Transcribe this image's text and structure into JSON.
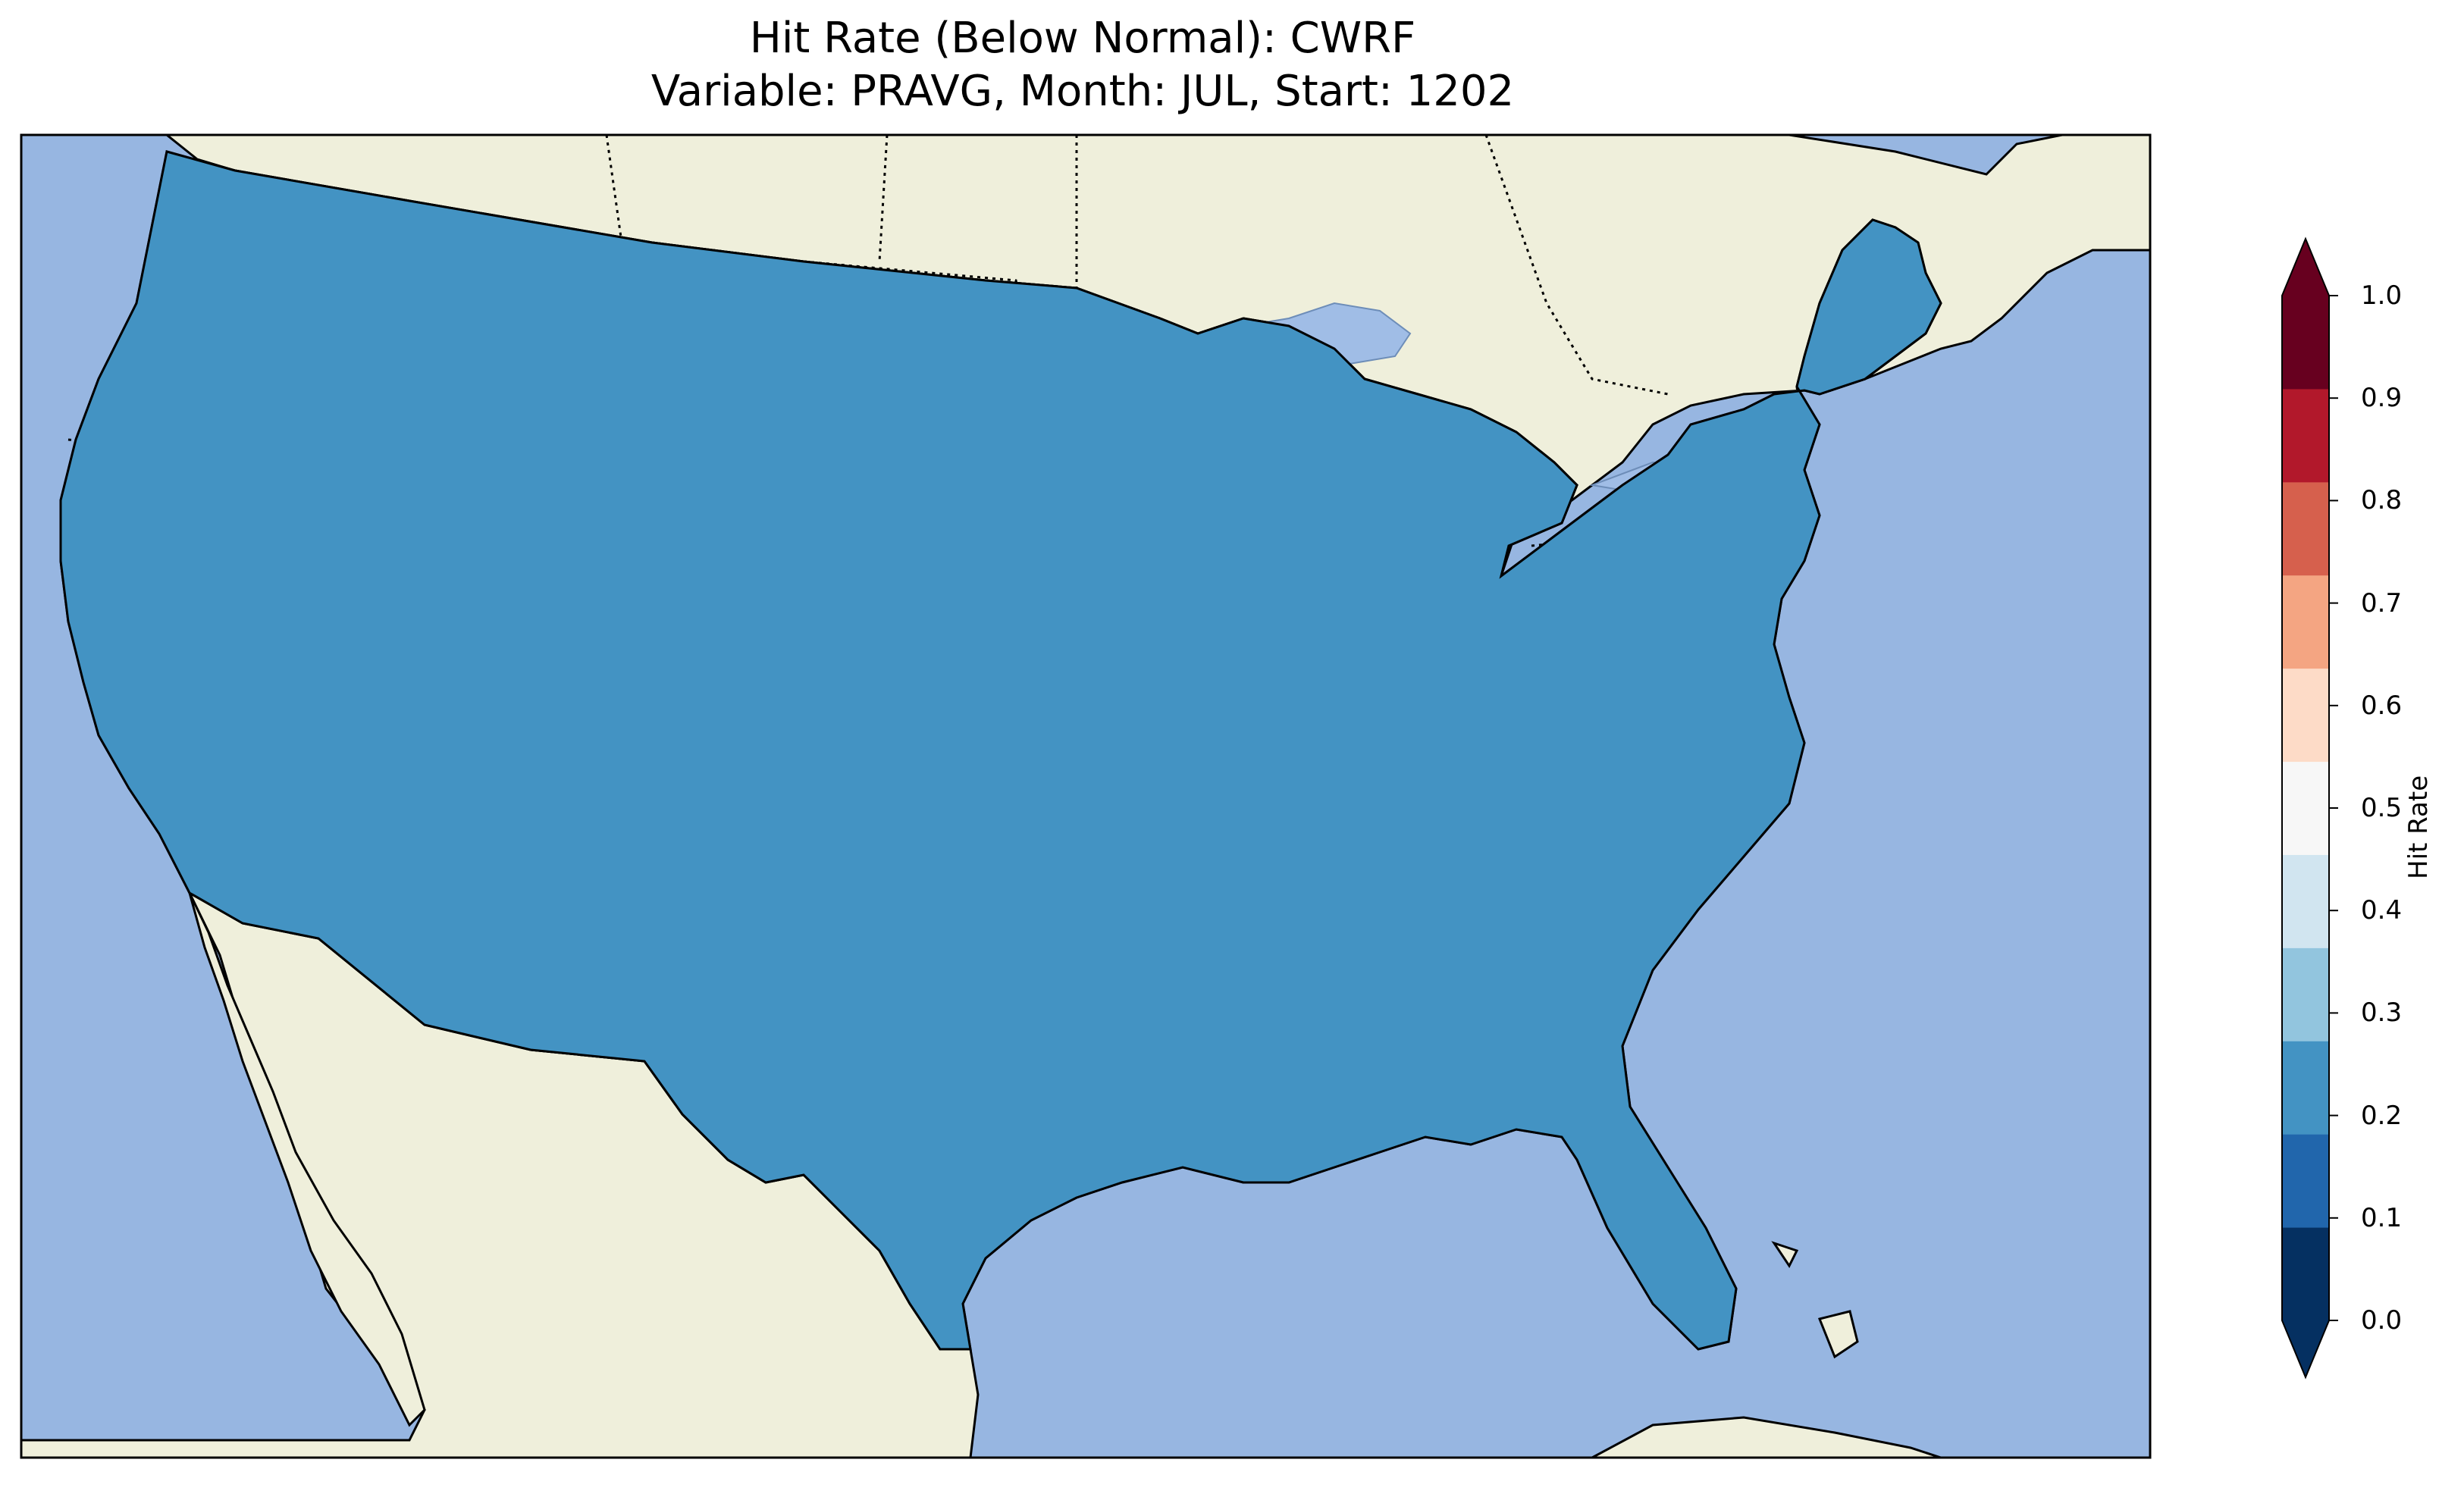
{
  "title": {
    "line1": "Hit Rate (Below Normal): CWRF",
    "line2": "Variable: PRAVG, Month: JUL, Start: 1202"
  },
  "colorbar": {
    "label": "Hit Rate",
    "ticks": [
      "0.0",
      "0.1",
      "0.2",
      "0.3",
      "0.4",
      "0.5",
      "0.6",
      "0.7",
      "0.8",
      "0.9",
      "1.0"
    ],
    "colors": [
      "#053061",
      "#2166ac",
      "#4393c3",
      "#92c5de",
      "#d1e5f0",
      "#f7f7f7",
      "#fddbc7",
      "#f4a582",
      "#d6604d",
      "#b2182b",
      "#67001f"
    ],
    "extend_min_color": "#053061",
    "extend_max_color": "#67001f"
  },
  "map": {
    "ocean_color": "#97b6e1",
    "land_color": "#efefdb",
    "dominant_value_range": [
      0.2,
      0.4
    ]
  }
}
